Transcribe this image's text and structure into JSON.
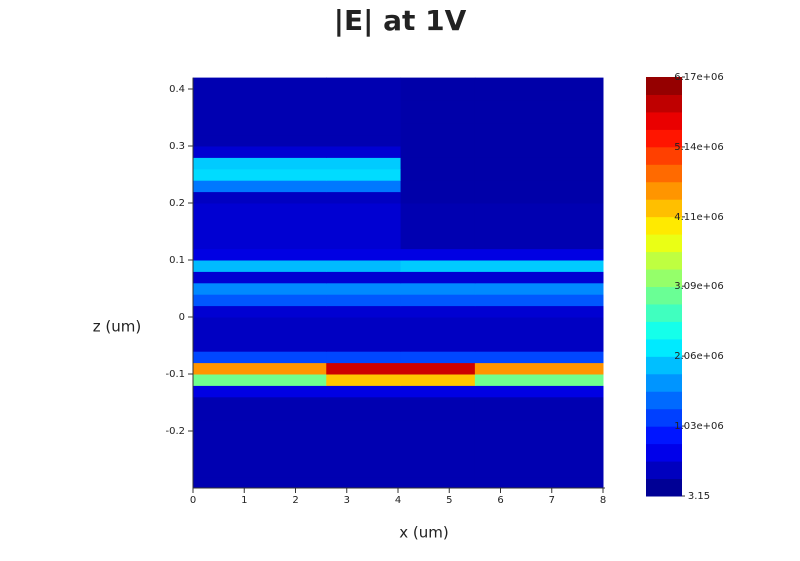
{
  "chart_data": {
    "type": "heatmap",
    "title": "|E| at 1V",
    "x_label": "x (um)",
    "y_label": "z (um)",
    "x": [
      0,
      2.6,
      4.05,
      5.5,
      8
    ],
    "y": [
      -0.3,
      -0.28,
      -0.26,
      -0.24,
      -0.22,
      -0.2,
      -0.18,
      -0.16,
      -0.14,
      -0.12,
      -0.1,
      -0.08,
      -0.06,
      -0.04,
      -0.02,
      0,
      0.02,
      0.04,
      0.06,
      0.08,
      0.1,
      0.12,
      0.14,
      0.16,
      0.18,
      0.2,
      0.22,
      0.24,
      0.26,
      0.28,
      0.3,
      0.32,
      0.34,
      0.36,
      0.38,
      0.4,
      0.42
    ],
    "z": [
      [
        300000,
        300000,
        300000,
        300000
      ],
      [
        300000,
        300000,
        300000,
        300000
      ],
      [
        300000,
        300000,
        300000,
        300000
      ],
      [
        300000,
        300000,
        300000,
        300000
      ],
      [
        300000,
        300000,
        300000,
        300000
      ],
      [
        300000,
        300000,
        300000,
        300000
      ],
      [
        300000,
        300000,
        300000,
        300000
      ],
      [
        300000,
        300000,
        300000,
        300000
      ],
      [
        600000,
        600000,
        600000,
        600000
      ],
      [
        3000000,
        4200000,
        4200000,
        3000000
      ],
      [
        4500000,
        5700000,
        5700000,
        4500000
      ],
      [
        1200000,
        1200000,
        1200000,
        1200000
      ],
      [
        400000,
        400000,
        400000,
        400000
      ],
      [
        400000,
        400000,
        400000,
        400000
      ],
      [
        400000,
        400000,
        400000,
        400000
      ],
      [
        500000,
        500000,
        500000,
        500000
      ],
      [
        1300000,
        1300000,
        1300000,
        1300000
      ],
      [
        1600000,
        1600000,
        1600000,
        1600000
      ],
      [
        500000,
        500000,
        500000,
        500000
      ],
      [
        1900000,
        1900000,
        2000000,
        2000000
      ],
      [
        600000,
        600000,
        600000,
        600000
      ],
      [
        500000,
        500000,
        300000,
        300000
      ],
      [
        500000,
        500000,
        300000,
        300000
      ],
      [
        500000,
        500000,
        300000,
        300000
      ],
      [
        500000,
        500000,
        300000,
        300000
      ],
      [
        400000,
        400000,
        250000,
        250000
      ],
      [
        1500000,
        1500000,
        250000,
        250000
      ],
      [
        2100000,
        2100000,
        250000,
        250000
      ],
      [
        2000000,
        2000000,
        250000,
        250000
      ],
      [
        500000,
        500000,
        250000,
        250000
      ],
      [
        300000,
        300000,
        250000,
        250000
      ],
      [
        300000,
        300000,
        250000,
        250000
      ],
      [
        300000,
        300000,
        250000,
        250000
      ],
      [
        300000,
        300000,
        250000,
        250000
      ],
      [
        300000,
        300000,
        250000,
        250000
      ],
      [
        300000,
        300000,
        250000,
        250000
      ]
    ],
    "xlim": [
      0,
      8
    ],
    "xticks": [
      0,
      1,
      2,
      3,
      4,
      5,
      6,
      7,
      8
    ],
    "ylim": [
      -0.3,
      0.42
    ],
    "yticks": [
      -0.2,
      -0.1,
      0,
      0.1,
      0.2,
      0.3,
      0.4
    ],
    "colorscale": "jet",
    "zlim": [
      3.15,
      6170000
    ],
    "zticks": [
      3.15,
      {
        "value": 1030000,
        "label": "1.03e+06"
      },
      {
        "value": 2060000,
        "label": "2.06e+06"
      },
      {
        "value": 3090000,
        "label": "3.09e+06"
      },
      {
        "value": 4110000,
        "label": "4.11e+06"
      },
      {
        "value": 5140000,
        "label": "5.14e+06"
      },
      {
        "value": 6170000,
        "label": "6.17e+06"
      }
    ]
  }
}
